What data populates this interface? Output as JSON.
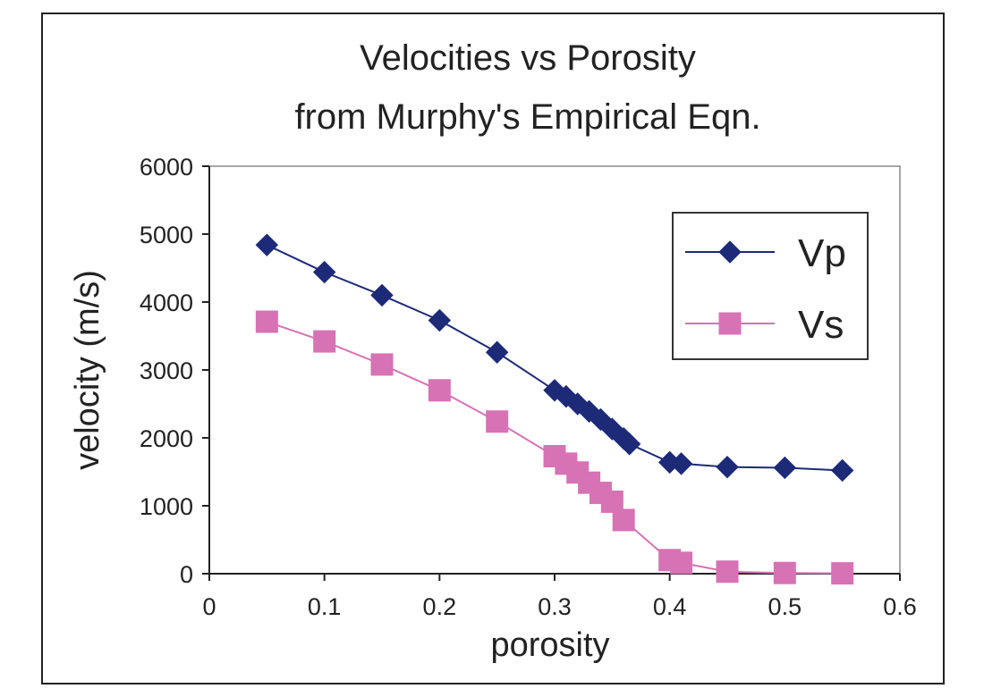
{
  "chart_data": {
    "type": "line",
    "title": [
      "Velocities vs Porosity",
      "from Murphy's Empirical Eqn."
    ],
    "xlabel": "porosity",
    "ylabel": "velocity (m/s)",
    "xlim": [
      0,
      0.6
    ],
    "ylim": [
      0,
      6000
    ],
    "xticks": [
      0,
      0.1,
      0.2,
      0.3,
      0.4,
      0.5,
      0.6
    ],
    "xtick_labels": [
      "0",
      "0.1",
      "0.2",
      "0.3",
      "0.4",
      "0.5",
      "0.6"
    ],
    "yticks": [
      0,
      1000,
      2000,
      3000,
      4000,
      5000,
      6000
    ],
    "ytick_labels": [
      "0",
      "1000",
      "2000",
      "3000",
      "4000",
      "5000",
      "6000"
    ],
    "grid": false,
    "legend_position": "top-right",
    "series": [
      {
        "name": "Vp",
        "color": "#1c2a78",
        "marker": "diamond",
        "points": [
          [
            0.05,
            4840
          ],
          [
            0.1,
            4440
          ],
          [
            0.15,
            4100
          ],
          [
            0.2,
            3730
          ],
          [
            0.25,
            3260
          ],
          [
            0.3,
            2700
          ],
          [
            0.31,
            2610
          ],
          [
            0.32,
            2500
          ],
          [
            0.33,
            2390
          ],
          [
            0.34,
            2270
          ],
          [
            0.35,
            2130
          ],
          [
            0.36,
            1990
          ],
          [
            0.365,
            1910
          ],
          [
            0.4,
            1640
          ],
          [
            0.41,
            1620
          ],
          [
            0.45,
            1570
          ],
          [
            0.5,
            1560
          ],
          [
            0.55,
            1520
          ]
        ]
      },
      {
        "name": "Vs",
        "color": "#d772b5",
        "marker": "square",
        "points": [
          [
            0.05,
            3710
          ],
          [
            0.1,
            3420
          ],
          [
            0.15,
            3080
          ],
          [
            0.2,
            2700
          ],
          [
            0.25,
            2240
          ],
          [
            0.3,
            1730
          ],
          [
            0.31,
            1620
          ],
          [
            0.32,
            1490
          ],
          [
            0.33,
            1340
          ],
          [
            0.34,
            1190
          ],
          [
            0.35,
            1060
          ],
          [
            0.36,
            790
          ],
          [
            0.4,
            200
          ],
          [
            0.41,
            160
          ],
          [
            0.45,
            30
          ],
          [
            0.5,
            10
          ],
          [
            0.55,
            5
          ]
        ]
      }
    ]
  }
}
